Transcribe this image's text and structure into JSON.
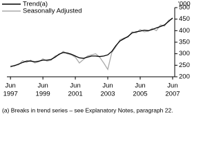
{
  "chart_data": {
    "type": "line",
    "y_unit": "'000",
    "footnote": "(a) Breaks in trend series – see Explanatory Notes, paragraph 22.",
    "x": [
      1997.42,
      1997.67,
      1997.92,
      1998.17,
      1998.42,
      1998.67,
      1998.92,
      1999.17,
      1999.42,
      1999.67,
      1999.92,
      2000.17,
      2000.42,
      2000.67,
      2000.92,
      2001.17,
      2001.42,
      2001.67,
      2001.92,
      2002.17,
      2002.42,
      2002.67,
      2002.92,
      2003.17,
      2003.42,
      2003.67,
      2003.92,
      2004.17,
      2004.42,
      2004.67,
      2004.92,
      2005.17,
      2005.42,
      2005.67,
      2005.92,
      2006.17,
      2006.42,
      2006.67,
      2006.92,
      2007.17,
      2007.42
    ],
    "series": [
      {
        "name": "Trend(a)",
        "color": "#000000",
        "width": 1.3,
        "values": [
          245,
          248,
          255,
          262,
          268,
          268,
          265,
          268,
          272,
          272,
          275,
          285,
          298,
          305,
          303,
          298,
          290,
          282,
          280,
          285,
          290,
          290,
          288,
          290,
          295,
          310,
          335,
          355,
          365,
          375,
          390,
          395,
          398,
          402,
          400,
          405,
          412,
          418,
          425,
          440,
          455
        ]
      },
      {
        "name": "Seasonally Adjusted",
        "color": "#aaaaaa",
        "width": 1.3,
        "values": [
          242,
          250,
          252,
          270,
          262,
          272,
          260,
          265,
          278,
          268,
          272,
          290,
          295,
          310,
          300,
          295,
          285,
          260,
          275,
          290,
          295,
          300,
          285,
          260,
          232,
          305,
          330,
          360,
          368,
          372,
          395,
          390,
          405,
          395,
          398,
          410,
          400,
          425,
          420,
          445,
          452
        ]
      }
    ],
    "xlim": [
      1997.2,
      2007.55
    ],
    "xticks": [
      {
        "value": 1997.42,
        "label": "Jun",
        "year": "1997"
      },
      {
        "value": 1999.42,
        "label": "Jun",
        "year": "1999"
      },
      {
        "value": 2001.42,
        "label": "Jun",
        "year": "2001"
      },
      {
        "value": 2003.42,
        "label": "Jun",
        "year": "2003"
      },
      {
        "value": 2005.42,
        "label": "Jun",
        "year": "2005"
      },
      {
        "value": 2007.42,
        "label": "Jun",
        "year": "2007"
      }
    ],
    "ylim": [
      200,
      500
    ],
    "yticks": [
      200,
      250,
      300,
      350,
      400,
      450,
      500
    ]
  }
}
